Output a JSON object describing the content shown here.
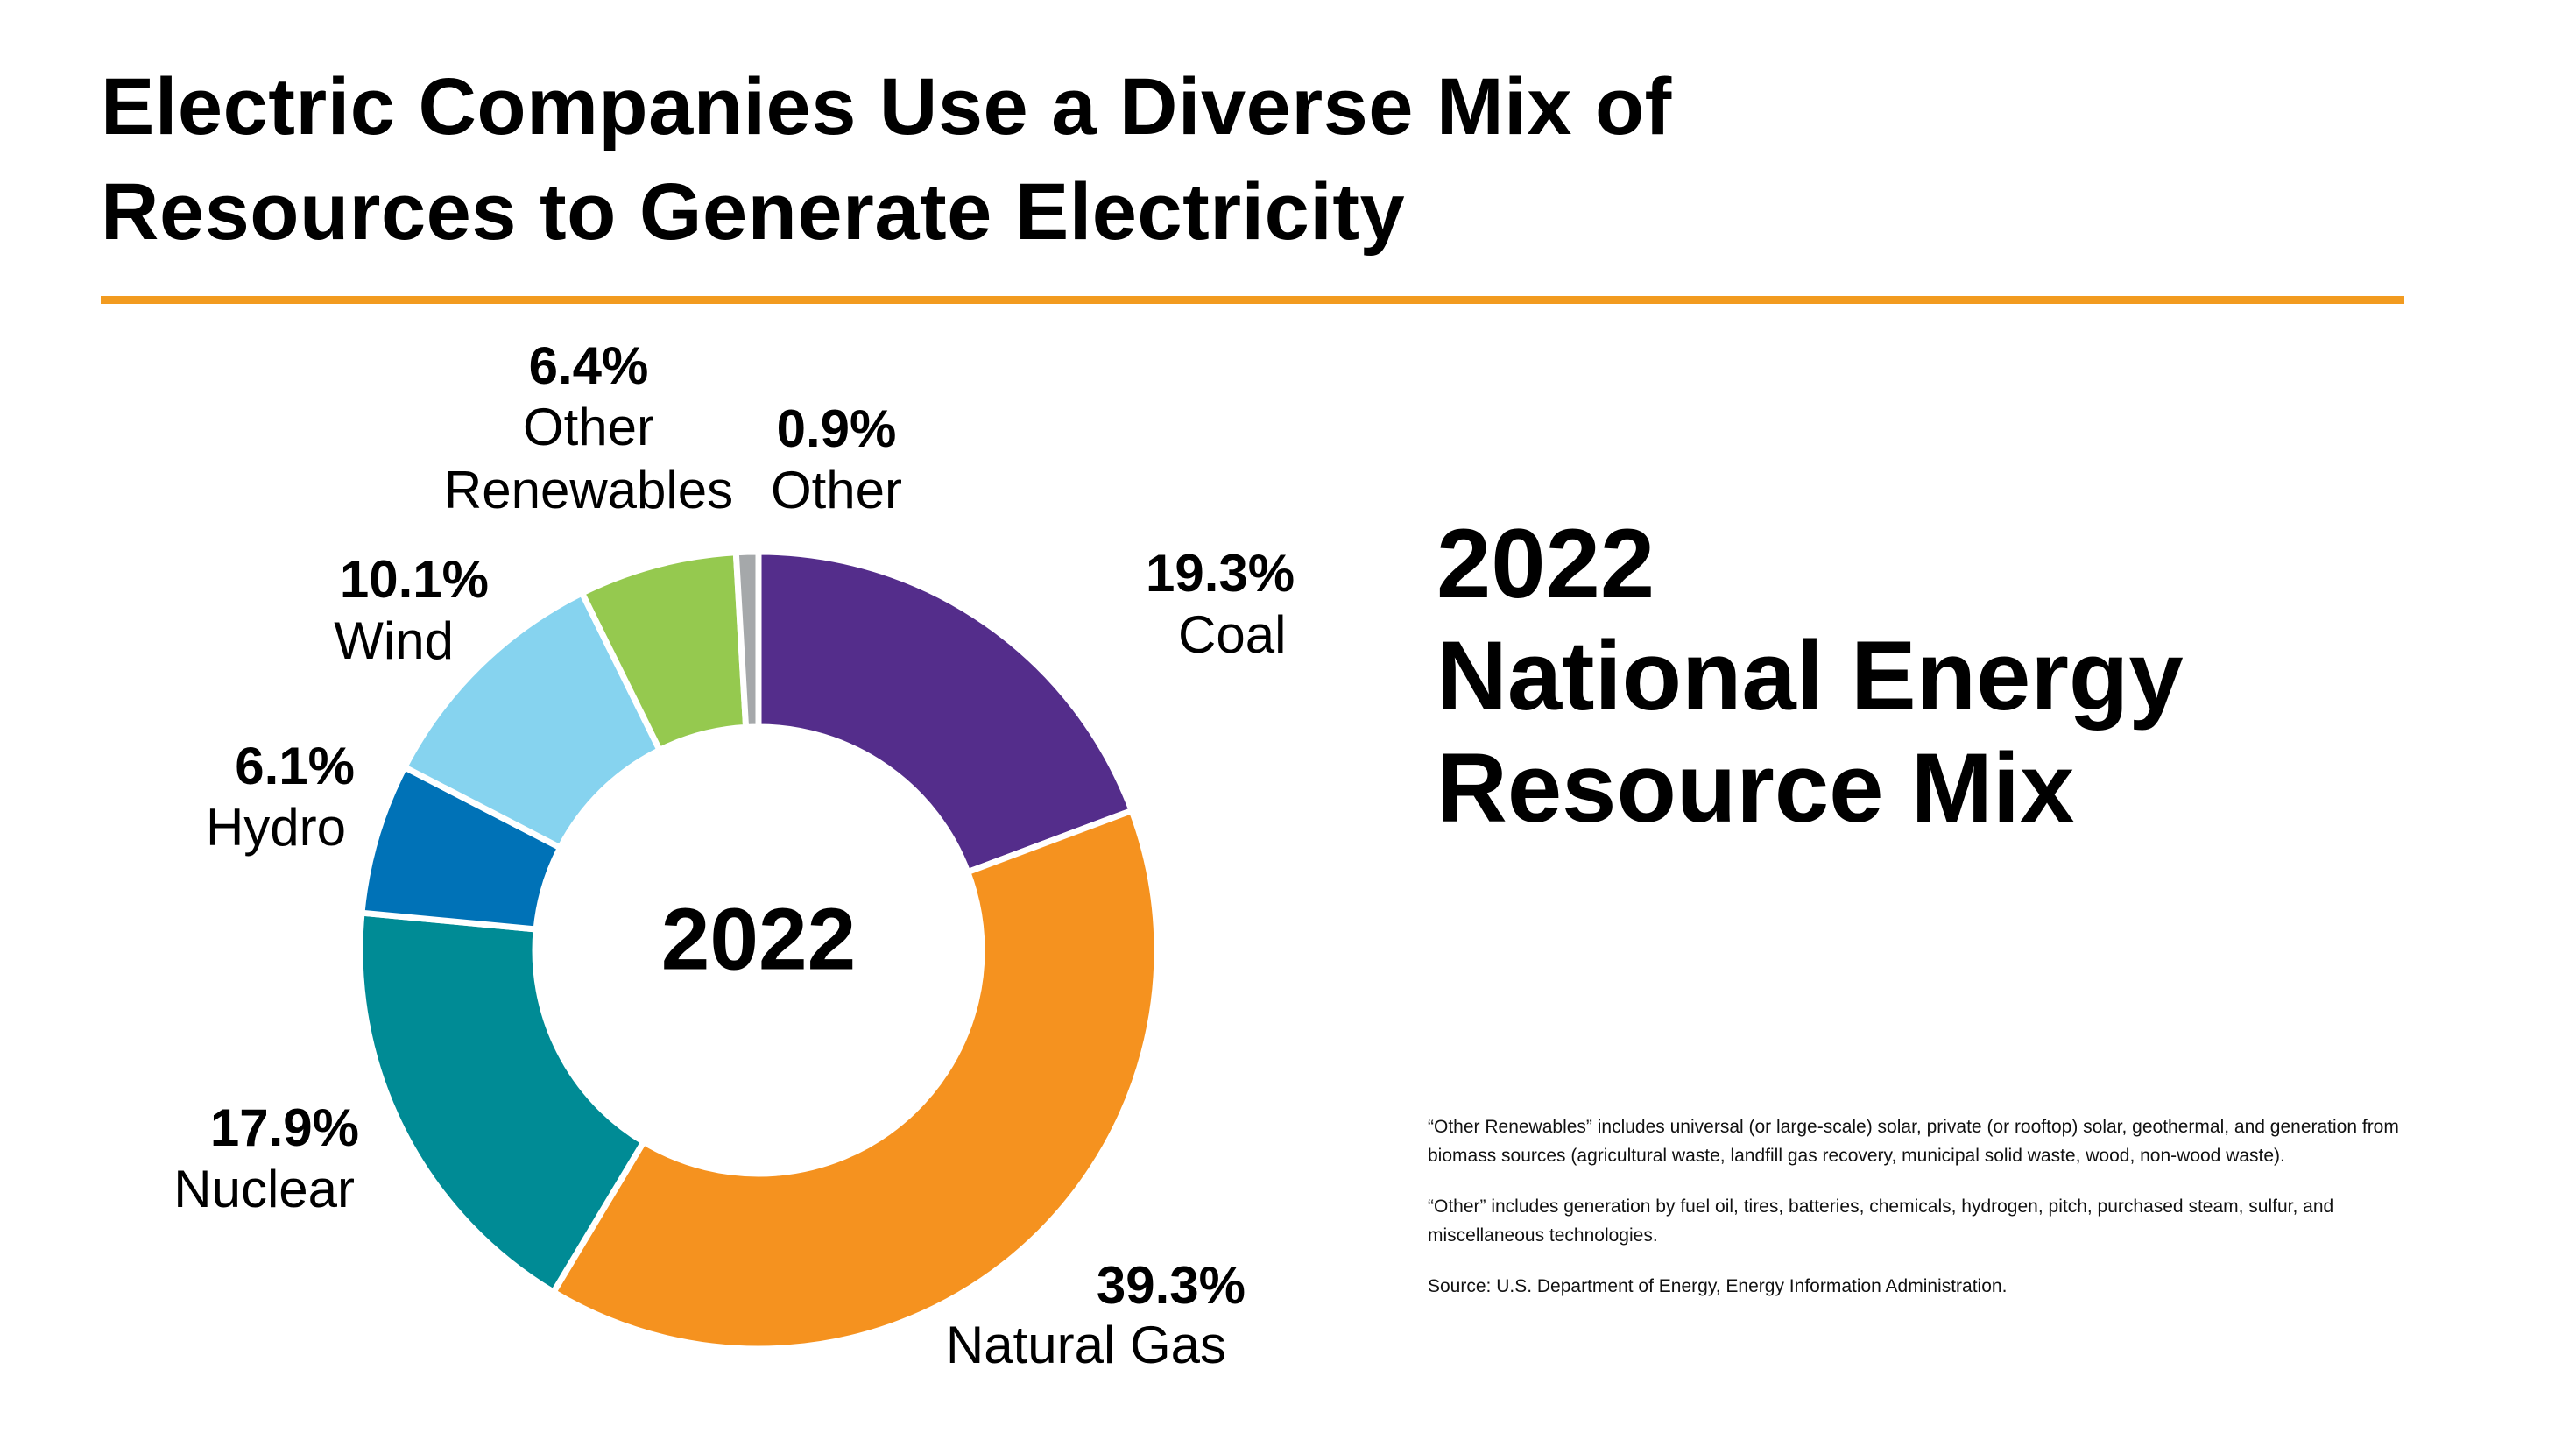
{
  "header": {
    "title_line1": "Electric Companies Use a Diverse Mix of",
    "title_line2": "Resources to Generate Electricity",
    "accent_color": "#f29b20"
  },
  "headline": {
    "line1": "2022",
    "line2": "National Energy",
    "line3": "Resource Mix"
  },
  "notes": {
    "other_renewables": "“Other Renewables” includes universal (or large-scale) solar, private (or rooftop) solar, geothermal, and generation from biomass sources (agricultural waste, landfill gas recovery, municipal solid waste, wood, non-wood waste).",
    "other": "“Other” includes generation by fuel oil, tires, batteries, chemicals, hydrogen, pitch, purchased steam, sulfur, and miscellaneous technologies.",
    "source": "Source: U.S. Department of Energy, Energy Information Administration."
  },
  "chart_data": {
    "type": "pie",
    "variant": "donut",
    "center_label": "2022",
    "unit": "%",
    "slices": [
      {
        "label": "Coal",
        "value": 19.3,
        "display": "19.3%",
        "color": "#542d8b"
      },
      {
        "label": "Natural Gas",
        "value": 39.3,
        "display": "39.3%",
        "color": "#f5921f"
      },
      {
        "label": "Nuclear",
        "value": 17.9,
        "display": "17.9%",
        "color": "#008b95"
      },
      {
        "label": "Hydro",
        "value": 6.1,
        "display": "6.1%",
        "color": "#0072b7"
      },
      {
        "label": "Wind",
        "value": 10.1,
        "display": "10.1%",
        "color": "#86d3ef"
      },
      {
        "label": "Other Renewables",
        "value": 6.4,
        "display": "6.4%",
        "color": "#95c94f"
      },
      {
        "label": "Other",
        "value": 0.9,
        "display": "0.9%",
        "color": "#a5a8aa"
      }
    ]
  }
}
